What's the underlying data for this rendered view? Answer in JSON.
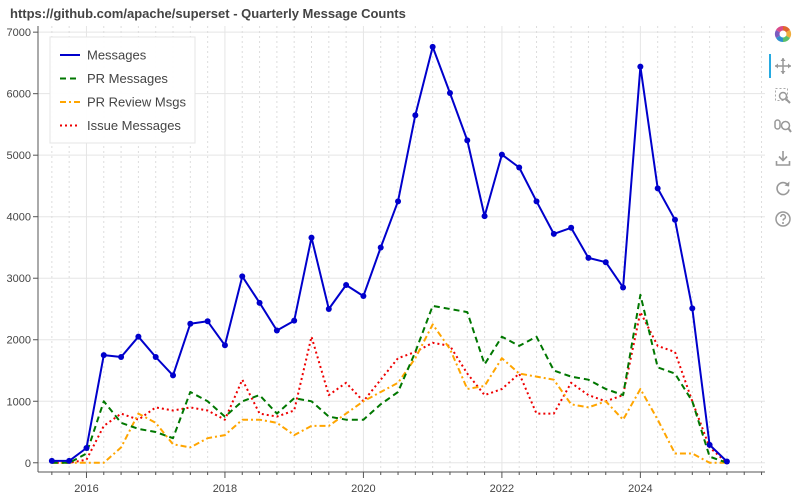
{
  "chart_data": {
    "type": "line",
    "title": "https://github.com/apache/superset - Quarterly Message Counts",
    "xlabel": "",
    "ylabel": "",
    "xlim": [
      2015.3,
      2025.8
    ],
    "ylim": [
      -150,
      7100
    ],
    "x_ticks": [
      2016,
      2018,
      2020,
      2022,
      2024
    ],
    "y_ticks": [
      0,
      1000,
      2000,
      3000,
      4000,
      5000,
      6000,
      7000
    ],
    "grid": true,
    "legend_position": "top-left",
    "x": [
      2015.5,
      2015.75,
      2016.0,
      2016.25,
      2016.5,
      2016.75,
      2017.0,
      2017.25,
      2017.5,
      2017.75,
      2018.0,
      2018.25,
      2018.5,
      2018.75,
      2019.0,
      2019.25,
      2019.5,
      2019.75,
      2020.0,
      2020.25,
      2020.5,
      2020.75,
      2021.0,
      2021.25,
      2021.5,
      2021.75,
      2022.0,
      2022.25,
      2022.5,
      2022.75,
      2023.0,
      2023.25,
      2023.5,
      2023.75,
      2024.0,
      2024.25,
      2024.5,
      2024.75,
      2025.0,
      2025.25
    ],
    "series": [
      {
        "name": "Messages",
        "color": "#0000cc",
        "dash": "solid",
        "markers": true,
        "values": [
          30,
          30,
          240,
          1750,
          1720,
          2050,
          1720,
          1420,
          2260,
          2300,
          1910,
          3030,
          2600,
          2150,
          2310,
          3660,
          2500,
          2890,
          2710,
          3500,
          4250,
          5650,
          6760,
          6010,
          5240,
          4010,
          5010,
          4800,
          4250,
          3720,
          3820,
          3330,
          3260,
          2850,
          6440,
          4460,
          3950,
          2510,
          290,
          20
        ]
      },
      {
        "name": "PR Messages",
        "color": "#007700",
        "dash": "dashed",
        "markers": false,
        "values": [
          0,
          0,
          150,
          1000,
          650,
          550,
          500,
          400,
          1150,
          1000,
          750,
          1000,
          1100,
          800,
          1050,
          1000,
          750,
          700,
          700,
          950,
          1150,
          1800,
          2550,
          2500,
          2450,
          1600,
          2050,
          1900,
          2050,
          1500,
          1400,
          1350,
          1200,
          1100,
          2730,
          1550,
          1450,
          1000,
          100,
          0
        ]
      },
      {
        "name": "PR Review Msgs",
        "color": "#ffa500",
        "dash": "dashdot",
        "markers": false,
        "values": [
          0,
          0,
          0,
          0,
          250,
          800,
          650,
          300,
          250,
          400,
          450,
          700,
          700,
          650,
          450,
          600,
          600,
          800,
          1000,
          1150,
          1300,
          1700,
          2250,
          1850,
          1200,
          1250,
          1700,
          1450,
          1400,
          1350,
          950,
          900,
          1000,
          700,
          1200,
          700,
          150,
          150,
          0,
          0
        ]
      },
      {
        "name": "Issue Messages",
        "color": "#ee0000",
        "dash": "dotted",
        "markers": false,
        "values": [
          0,
          0,
          50,
          600,
          800,
          700,
          900,
          850,
          900,
          850,
          700,
          1350,
          800,
          750,
          850,
          2050,
          1100,
          1300,
          1000,
          1350,
          1700,
          1800,
          1950,
          1900,
          1450,
          1100,
          1200,
          1450,
          800,
          800,
          1300,
          1100,
          1000,
          1100,
          2450,
          1900,
          1800,
          1000,
          250,
          0
        ]
      }
    ]
  },
  "toolbar": {
    "icons": [
      "bokeh-logo-icon",
      "pan-icon",
      "box-zoom-icon",
      "wheel-zoom-icon",
      "save-icon",
      "reset-icon",
      "help-icon"
    ]
  }
}
